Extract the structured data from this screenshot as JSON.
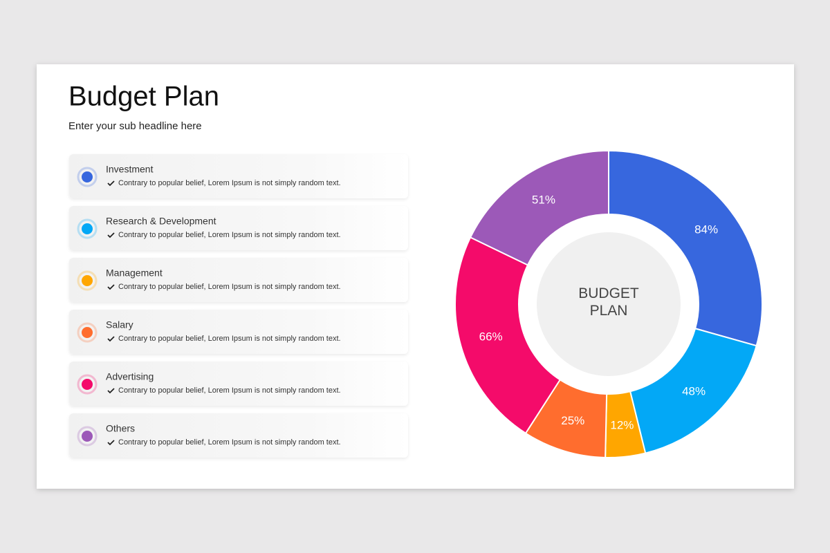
{
  "header": {
    "title": "Budget Plan",
    "subtitle": "Enter your sub headline here"
  },
  "legend_notes": [
    "Contrary to popular belief, Lorem Ipsum is not simply random text.",
    "Contrary to popular belief, Lorem Ipsum is not simply random text.",
    "Contrary to popular belief, Lorem Ipsum is not simply random text.",
    "Contrary to popular belief, Lorem Ipsum is not simply random text.",
    "Contrary to popular belief, Lorem Ipsum is not simply random text.",
    "Contrary to popular belief, Lorem Ipsum is not simply random text."
  ],
  "chart_data": {
    "type": "donut",
    "center_label": "BUDGET PLAN",
    "categories": [
      "Investment",
      "Research  & Development",
      "Management",
      "Salary",
      "Advertising",
      "Others"
    ],
    "values": [
      84,
      48,
      12,
      25,
      66,
      51
    ],
    "value_labels": [
      "84%",
      "48%",
      "12%",
      "25%",
      "66%",
      "51%"
    ],
    "colors": [
      "#3767de",
      "#03a8f6",
      "#ffa600",
      "#ff6d2e",
      "#f40b6a",
      "#9c59b8"
    ]
  }
}
